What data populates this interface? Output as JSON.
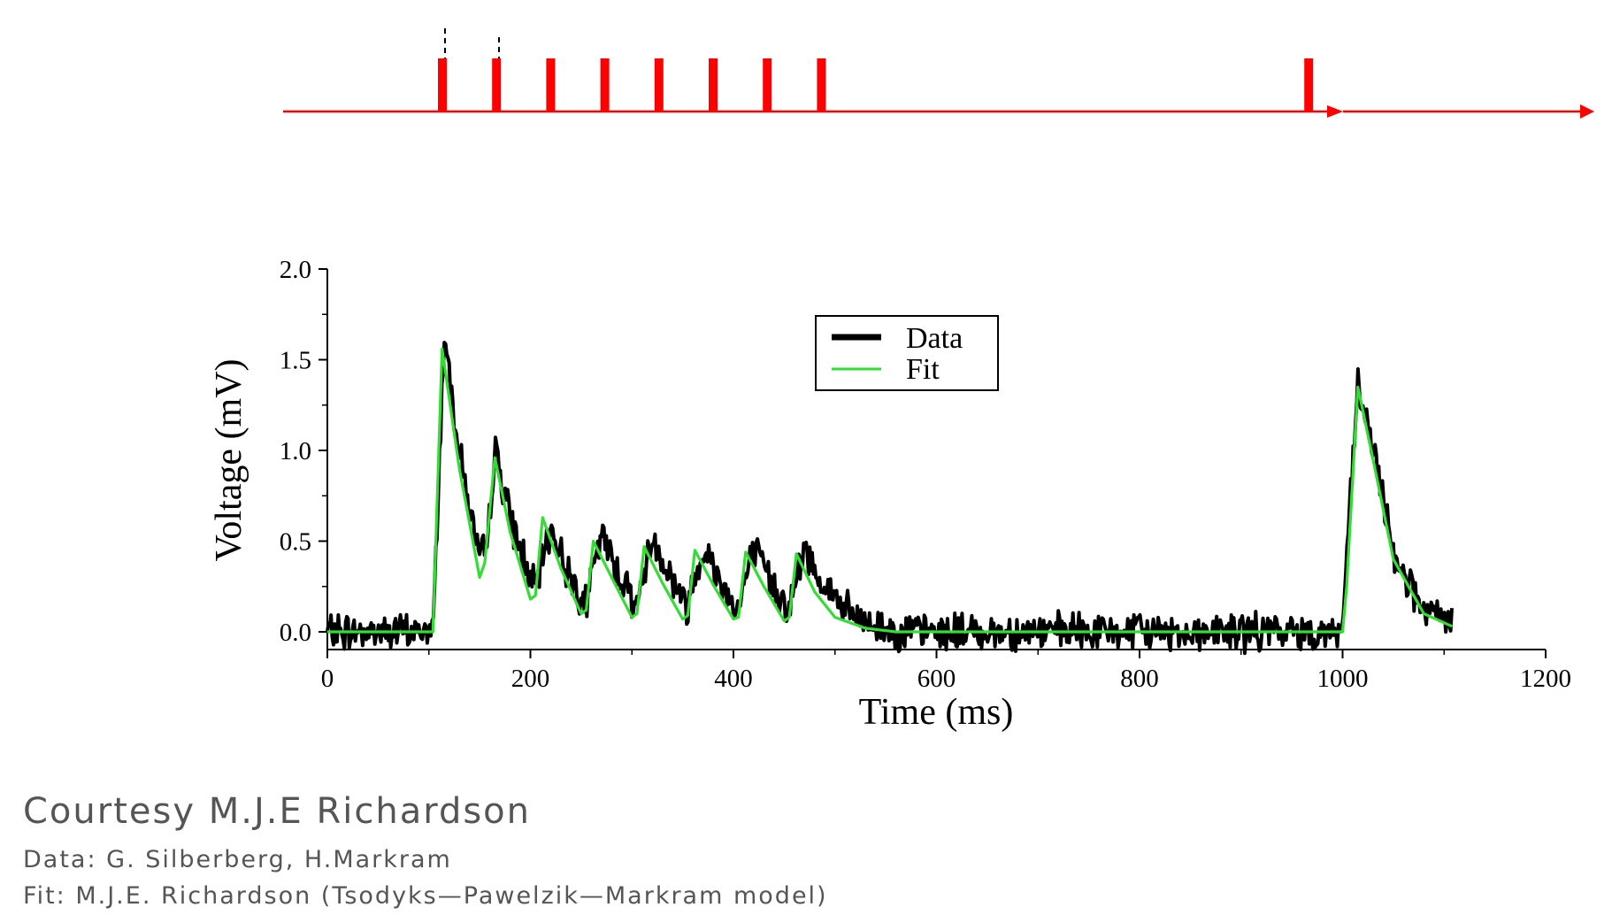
{
  "stimulus": {
    "color": "#ff0000",
    "spike_times_ms": [
      100,
      150,
      200,
      250,
      300,
      350,
      400,
      450,
      900
    ]
  },
  "chart_data": {
    "type": "line",
    "xlabel": "Time (ms)",
    "ylabel": "Voltage (mV)",
    "xlim": [
      0,
      1200
    ],
    "ylim": [
      0,
      2.0
    ],
    "xticks": [
      "0",
      "200",
      "400",
      "600",
      "800",
      "1000",
      "1200"
    ],
    "yticks": [
      "0.0",
      "0.5",
      "1.0",
      "1.5",
      "2.0"
    ],
    "legend": {
      "placement": "top-center",
      "entries": [
        "Data",
        "Fit"
      ]
    },
    "grid": false,
    "series": [
      {
        "name": "Data",
        "color": "#000000",
        "x": [
          0,
          104,
          115,
          130,
          150,
          158,
          165,
          180,
          205,
          210,
          220,
          235,
          255,
          260,
          270,
          285,
          305,
          310,
          320,
          335,
          355,
          360,
          370,
          385,
          405,
          410,
          420,
          435,
          455,
          460,
          470,
          490,
          520,
          560,
          700,
          900,
          999,
          1003,
          1015,
          1030,
          1050,
          1080,
          1108
        ],
        "y": [
          0.0,
          0.0,
          1.65,
          1.0,
          0.38,
          0.5,
          1.02,
          0.62,
          0.22,
          0.36,
          0.58,
          0.35,
          0.15,
          0.3,
          0.53,
          0.35,
          0.14,
          0.28,
          0.52,
          0.34,
          0.13,
          0.27,
          0.47,
          0.3,
          0.12,
          0.26,
          0.45,
          0.3,
          0.12,
          0.25,
          0.45,
          0.25,
          0.07,
          0.0,
          0.0,
          0.0,
          0.0,
          0.3,
          1.35,
          1.0,
          0.45,
          0.1,
          0.05
        ]
      },
      {
        "name": "Fit",
        "color": "#33dd33",
        "x": [
          0,
          104,
          113,
          130,
          150,
          155,
          165,
          180,
          200,
          205,
          212,
          230,
          250,
          255,
          262,
          280,
          300,
          305,
          312,
          330,
          350,
          355,
          362,
          380,
          400,
          405,
          412,
          430,
          450,
          455,
          462,
          480,
          500,
          530,
          560,
          700,
          900,
          1000,
          1004,
          1015,
          1030,
          1050,
          1080,
          1108
        ],
        "y": [
          0.0,
          0.0,
          1.56,
          0.9,
          0.3,
          0.38,
          0.96,
          0.55,
          0.18,
          0.2,
          0.63,
          0.35,
          0.1,
          0.12,
          0.5,
          0.3,
          0.08,
          0.1,
          0.47,
          0.27,
          0.07,
          0.09,
          0.45,
          0.26,
          0.07,
          0.08,
          0.44,
          0.25,
          0.06,
          0.08,
          0.43,
          0.22,
          0.08,
          0.02,
          0.0,
          0.0,
          0.0,
          0.0,
          0.25,
          1.35,
          0.95,
          0.4,
          0.1,
          0.03
        ]
      }
    ]
  },
  "credits": {
    "title": "Courtesy M.J.E Richardson",
    "data_line": "Data: G. Silberberg, H.Markram",
    "fit_line": "Fit: M.J.E. Richardson (Tsodyks—Pawelzik—Markram model)"
  }
}
